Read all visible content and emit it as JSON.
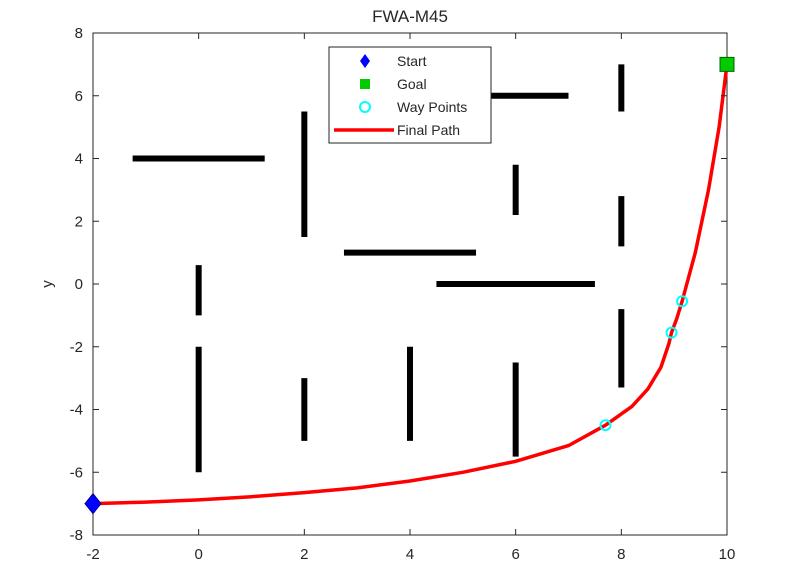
{
  "chart_data": {
    "type": "line",
    "title": "FWA-M45",
    "xlabel": "",
    "ylabel": "y",
    "xlim": [
      -2,
      10
    ],
    "ylim": [
      -8,
      8
    ],
    "xticks": [
      -2,
      0,
      2,
      4,
      6,
      8,
      10
    ],
    "yticks": [
      -8,
      -6,
      -4,
      -2,
      0,
      2,
      4,
      6,
      8
    ],
    "grid": false,
    "legend_position": "top-center",
    "obstacles": [
      {
        "x": [
          -1.25,
          1.25
        ],
        "y": [
          4,
          4
        ]
      },
      {
        "x": [
          2,
          2
        ],
        "y": [
          1.5,
          5.5
        ]
      },
      {
        "x": [
          0,
          0
        ],
        "y": [
          -1,
          0.6
        ]
      },
      {
        "x": [
          0,
          0
        ],
        "y": [
          -6,
          -2
        ]
      },
      {
        "x": [
          2,
          2
        ],
        "y": [
          -5,
          -3
        ]
      },
      {
        "x": [
          2.75,
          5.25
        ],
        "y": [
          1,
          1
        ]
      },
      {
        "x": [
          4,
          4
        ],
        "y": [
          -5,
          -2
        ]
      },
      {
        "x": [
          4.5,
          7.5
        ],
        "y": [
          0,
          0
        ]
      },
      {
        "x": [
          5.5,
          7
        ],
        "y": [
          6,
          6
        ]
      },
      {
        "x": [
          6,
          6
        ],
        "y": [
          2.2,
          3.8
        ]
      },
      {
        "x": [
          6,
          6
        ],
        "y": [
          -5.5,
          -2.5
        ]
      },
      {
        "x": [
          8,
          8
        ],
        "y": [
          5.5,
          7
        ]
      },
      {
        "x": [
          8,
          8
        ],
        "y": [
          1.2,
          2.8
        ]
      },
      {
        "x": [
          8,
          8
        ],
        "y": [
          -3.3,
          -0.8
        ]
      }
    ],
    "series": [
      {
        "name": "Start",
        "marker": "diamond",
        "color": "#0000ff",
        "points": [
          [
            -2,
            -7
          ]
        ]
      },
      {
        "name": "Goal",
        "marker": "square",
        "color": "#00cc00",
        "points": [
          [
            10,
            7
          ]
        ]
      },
      {
        "name": "Way Points",
        "marker": "circle",
        "color": "#00ffff",
        "points": [
          [
            7.7,
            -4.5
          ],
          [
            8.95,
            -1.55
          ],
          [
            9.15,
            -0.55
          ]
        ]
      },
      {
        "name": "Final Path",
        "marker": "line",
        "color": "#ff0000",
        "points": [
          [
            -2,
            -7
          ],
          [
            -1,
            -6.95
          ],
          [
            0,
            -6.88
          ],
          [
            1,
            -6.78
          ],
          [
            2,
            -6.65
          ],
          [
            3,
            -6.5
          ],
          [
            4,
            -6.28
          ],
          [
            5,
            -6.0
          ],
          [
            6,
            -5.65
          ],
          [
            7,
            -5.15
          ],
          [
            7.7,
            -4.5
          ],
          [
            8.2,
            -3.9
          ],
          [
            8.5,
            -3.35
          ],
          [
            8.75,
            -2.65
          ],
          [
            8.9,
            -1.9
          ],
          [
            8.95,
            -1.55
          ],
          [
            9.05,
            -1.1
          ],
          [
            9.15,
            -0.55
          ],
          [
            9.4,
            1.0
          ],
          [
            9.65,
            3.0
          ],
          [
            9.85,
            5.0
          ],
          [
            10,
            7
          ]
        ]
      }
    ]
  }
}
